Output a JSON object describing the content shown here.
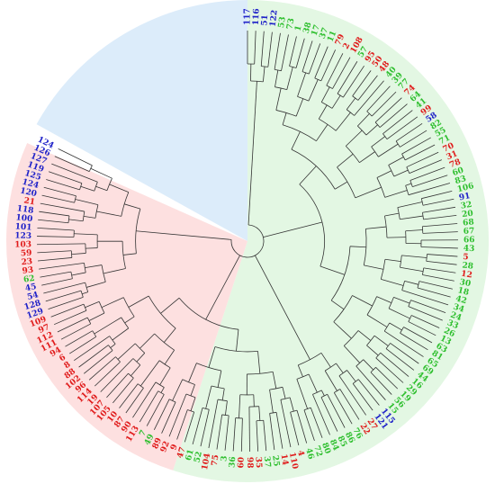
{
  "colors": {
    "blue": "#1f22c8",
    "red": "#e01b1b",
    "green": "#2fbf2f",
    "black": "#222222",
    "sector_blue": "#dcecfa",
    "sector_green": "#e3f7e3",
    "sector_red": "#fde0e0",
    "branch": "#333333"
  },
  "sectors": [
    {
      "name": "blue-clade",
      "fill": "#dcecfa"
    },
    {
      "name": "green-clade",
      "fill": "#e3f7e3"
    },
    {
      "name": "red-clade",
      "fill": "#fde0e0"
    }
  ],
  "leaves": [
    {
      "label": "117",
      "color": "blue"
    },
    {
      "label": "116",
      "color": "blue"
    },
    {
      "label": "51",
      "color": "blue"
    },
    {
      "label": "122",
      "color": "blue"
    },
    {
      "label": "53",
      "color": "green"
    },
    {
      "label": "73",
      "color": "green"
    },
    {
      "label": "1",
      "color": "green"
    },
    {
      "label": "38",
      "color": "green"
    },
    {
      "label": "17",
      "color": "green"
    },
    {
      "label": "37",
      "color": "green"
    },
    {
      "label": "11",
      "color": "green"
    },
    {
      "label": "79",
      "color": "red"
    },
    {
      "label": "2",
      "color": "red"
    },
    {
      "label": "108",
      "color": "red"
    },
    {
      "label": "57",
      "color": "green"
    },
    {
      "label": "95",
      "color": "red"
    },
    {
      "label": "50",
      "color": "red"
    },
    {
      "label": "48",
      "color": "red"
    },
    {
      "label": "40",
      "color": "green"
    },
    {
      "label": "39",
      "color": "green"
    },
    {
      "label": "77",
      "color": "green"
    },
    {
      "label": "74",
      "color": "red"
    },
    {
      "label": "64",
      "color": "green"
    },
    {
      "label": "41",
      "color": "green"
    },
    {
      "label": "99",
      "color": "red"
    },
    {
      "label": "58",
      "color": "blue"
    },
    {
      "label": "82",
      "color": "green"
    },
    {
      "label": "55",
      "color": "green"
    },
    {
      "label": "71",
      "color": "green"
    },
    {
      "label": "70",
      "color": "red"
    },
    {
      "label": "31",
      "color": "red"
    },
    {
      "label": "78",
      "color": "red"
    },
    {
      "label": "60",
      "color": "green"
    },
    {
      "label": "83",
      "color": "green"
    },
    {
      "label": "106",
      "color": "green"
    },
    {
      "label": "91",
      "color": "blue"
    },
    {
      "label": "32",
      "color": "green"
    },
    {
      "label": "20",
      "color": "green"
    },
    {
      "label": "68",
      "color": "green"
    },
    {
      "label": "67",
      "color": "green"
    },
    {
      "label": "66",
      "color": "green"
    },
    {
      "label": "43",
      "color": "green"
    },
    {
      "label": "5",
      "color": "red"
    },
    {
      "label": "28",
      "color": "green"
    },
    {
      "label": "12",
      "color": "red"
    },
    {
      "label": "30",
      "color": "green"
    },
    {
      "label": "18",
      "color": "green"
    },
    {
      "label": "42",
      "color": "green"
    },
    {
      "label": "34",
      "color": "green"
    },
    {
      "label": "24",
      "color": "green"
    },
    {
      "label": "33",
      "color": "green"
    },
    {
      "label": "26",
      "color": "green"
    },
    {
      "label": "13",
      "color": "green"
    },
    {
      "label": "63",
      "color": "green"
    },
    {
      "label": "81",
      "color": "green"
    },
    {
      "label": "65",
      "color": "green"
    },
    {
      "label": "69",
      "color": "green"
    },
    {
      "label": "44",
      "color": "green"
    },
    {
      "label": "16",
      "color": "green"
    },
    {
      "label": "29",
      "color": "green"
    },
    {
      "label": "19",
      "color": "green"
    },
    {
      "label": "56",
      "color": "green"
    },
    {
      "label": "15",
      "color": "green"
    },
    {
      "label": "115",
      "color": "blue"
    },
    {
      "label": "121",
      "color": "blue"
    },
    {
      "label": "27",
      "color": "red"
    },
    {
      "label": "22",
      "color": "red"
    },
    {
      "label": "76",
      "color": "green"
    },
    {
      "label": "86",
      "color": "green"
    },
    {
      "label": "85",
      "color": "green"
    },
    {
      "label": "84",
      "color": "green"
    },
    {
      "label": "80",
      "color": "green"
    },
    {
      "label": "72",
      "color": "green"
    },
    {
      "label": "46",
      "color": "green"
    },
    {
      "label": "4",
      "color": "red"
    },
    {
      "label": "110",
      "color": "red"
    },
    {
      "label": "14",
      "color": "red"
    },
    {
      "label": "25",
      "color": "green"
    },
    {
      "label": "37",
      "color": "green"
    },
    {
      "label": "35",
      "color": "red"
    },
    {
      "label": "98",
      "color": "red"
    },
    {
      "label": "60",
      "color": "red"
    },
    {
      "label": "36",
      "color": "green"
    },
    {
      "label": "3",
      "color": "green"
    },
    {
      "label": "75",
      "color": "red"
    },
    {
      "label": "104",
      "color": "red"
    },
    {
      "label": "52",
      "color": "green"
    },
    {
      "label": "61",
      "color": "green"
    },
    {
      "label": "47",
      "color": "red"
    },
    {
      "label": "9",
      "color": "red"
    },
    {
      "label": "92",
      "color": "red"
    },
    {
      "label": "89",
      "color": "red"
    },
    {
      "label": "49",
      "color": "green"
    },
    {
      "label": "7",
      "color": "green"
    },
    {
      "label": "113",
      "color": "red"
    },
    {
      "label": "90",
      "color": "red"
    },
    {
      "label": "87",
      "color": "red"
    },
    {
      "label": "10",
      "color": "red"
    },
    {
      "label": "105",
      "color": "red"
    },
    {
      "label": "107",
      "color": "red"
    },
    {
      "label": "19",
      "color": "red"
    },
    {
      "label": "114",
      "color": "red"
    },
    {
      "label": "96",
      "color": "red"
    },
    {
      "label": "102",
      "color": "red"
    },
    {
      "label": "88",
      "color": "red"
    },
    {
      "label": "8",
      "color": "red"
    },
    {
      "label": "6",
      "color": "red"
    },
    {
      "label": "94",
      "color": "red"
    },
    {
      "label": "111",
      "color": "red"
    },
    {
      "label": "112",
      "color": "red"
    },
    {
      "label": "97",
      "color": "red"
    },
    {
      "label": "109",
      "color": "red"
    },
    {
      "label": "129",
      "color": "blue"
    },
    {
      "label": "128",
      "color": "blue"
    },
    {
      "label": "54",
      "color": "blue"
    },
    {
      "label": "45",
      "color": "blue"
    },
    {
      "label": "62",
      "color": "green"
    },
    {
      "label": "93",
      "color": "red"
    },
    {
      "label": "23",
      "color": "red"
    },
    {
      "label": "59",
      "color": "red"
    },
    {
      "label": "103",
      "color": "red"
    },
    {
      "label": "123",
      "color": "blue"
    },
    {
      "label": "101",
      "color": "blue"
    },
    {
      "label": "100",
      "color": "blue"
    },
    {
      "label": "118",
      "color": "blue"
    },
    {
      "label": "21",
      "color": "red"
    },
    {
      "label": "120",
      "color": "blue"
    },
    {
      "label": "124",
      "color": "blue"
    },
    {
      "label": "125",
      "color": "blue"
    },
    {
      "label": "119",
      "color": "blue"
    },
    {
      "label": "127",
      "color": "blue"
    },
    {
      "label": "126",
      "color": "blue"
    },
    {
      "label": "124",
      "color": "blue"
    }
  ]
}
